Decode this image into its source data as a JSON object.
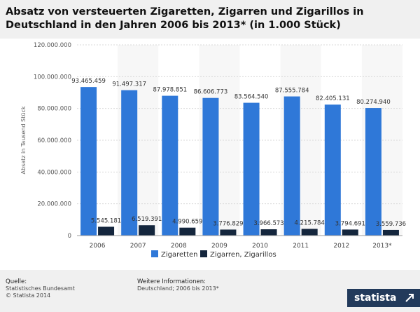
{
  "title": "Absatz von versteuerten Zigaretten, Zigarren und Zigarillos in Deutschland in den Jahren 2006 bis 2013* (in 1.000 Stück)",
  "footer": {
    "source_header": "Quelle:",
    "source_line1": "Statistisches Bundesamt",
    "source_line2": "© Statista 2014",
    "info_header": "Weitere Informationen:",
    "info_line1": "Deutschland; 2006 bis 2013*"
  },
  "brand": "statista",
  "chart_data": {
    "type": "bar",
    "title": "Absatz von versteuerten Zigaretten, Zigarren und Zigarillos in Deutschland in den Jahren 2006 bis 2013* (in 1.000 Stück)",
    "xlabel": "",
    "ylabel": "Absatz in Tausend Stück",
    "ylim": [
      0,
      120000000
    ],
    "yticks": [
      0,
      20000000,
      40000000,
      60000000,
      80000000,
      100000000,
      120000000
    ],
    "ytick_labels": [
      "0",
      "20.000.000",
      "40.000.000",
      "60.000.000",
      "80.000.000",
      "100.000.000",
      "120.000.000"
    ],
    "categories": [
      "2006",
      "2007",
      "2008",
      "2009",
      "2010",
      "2011",
      "2012",
      "2013*"
    ],
    "series": [
      {
        "name": "Zigaretten",
        "color": "#2f78d8",
        "values": [
          93465459,
          91497317,
          87978851,
          86606773,
          83564540,
          87555784,
          82405131,
          80274940
        ],
        "labels": [
          "93.465.459",
          "91.497.317",
          "87.978.851",
          "86.606.773",
          "83.564.540",
          "87.555.784",
          "82.405.131",
          "80.274.940"
        ]
      },
      {
        "name": "Zigarren, Zigarillos",
        "color": "#14263d",
        "values": [
          5545181,
          6519391,
          4990659,
          3776829,
          3966573,
          4215784,
          3794691,
          3559736
        ],
        "labels": [
          "5.545.181",
          "6.519.391",
          "4.990.659",
          "3.776.829",
          "3.966.573",
          "4.215.784",
          "3.794.691",
          "3.559.736"
        ]
      }
    ],
    "legend_position": "bottom",
    "grid": true
  }
}
